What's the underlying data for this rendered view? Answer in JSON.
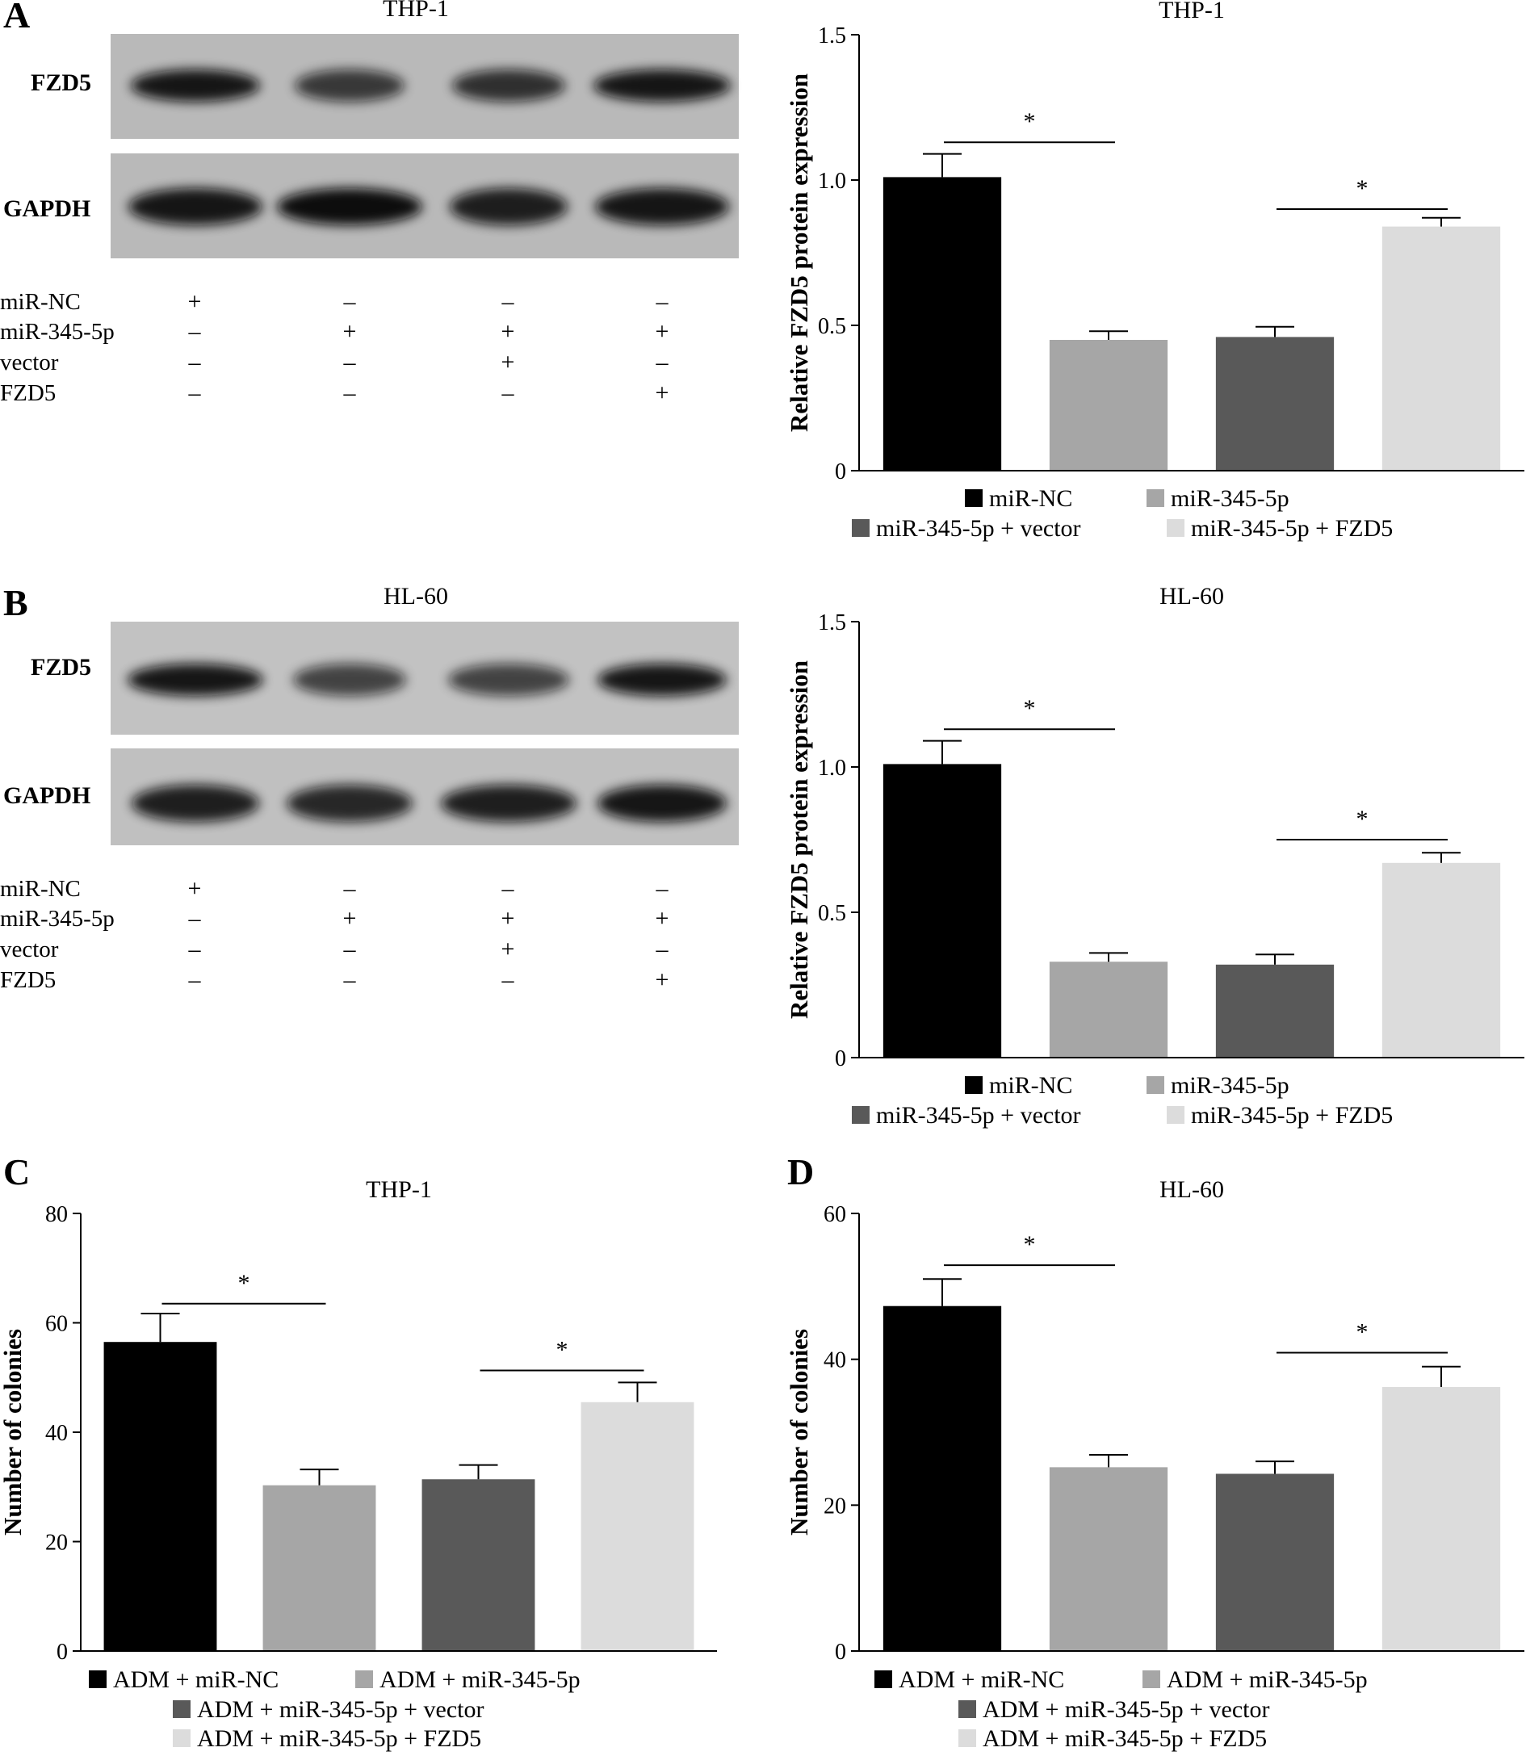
{
  "panels": [
    {
      "letter": "A",
      "blot_title": "THP-1"
    },
    {
      "letter": "B",
      "blot_title": "HL-60"
    },
    {
      "letter": "C"
    },
    {
      "letter": "D"
    }
  ],
  "blots": [
    {
      "title": "THP-1",
      "bands": [
        "FZD5",
        "GAPDH"
      ],
      "band_intensity": [
        [
          0.95,
          0.75,
          0.8,
          0.95
        ],
        [
          0.95,
          1.0,
          0.9,
          0.95
        ]
      ],
      "rows": [
        {
          "label": "miR-NC",
          "signs": [
            "+",
            "–",
            "–",
            "–"
          ]
        },
        {
          "label": "miR-345-5p",
          "signs": [
            "–",
            "+",
            "+",
            "+"
          ]
        },
        {
          "label": "vector",
          "signs": [
            "–",
            "–",
            "+",
            "–"
          ]
        },
        {
          "label": "FZD5",
          "signs": [
            "–",
            "–",
            "–",
            "+"
          ]
        }
      ]
    },
    {
      "title": "HL-60",
      "bands": [
        "FZD5",
        "GAPDH"
      ],
      "band_intensity": [
        [
          0.95,
          0.7,
          0.7,
          0.95
        ],
        [
          0.9,
          0.85,
          0.9,
          0.95
        ]
      ],
      "rows": [
        {
          "label": "miR-NC",
          "signs": [
            "+",
            "–",
            "–",
            "–"
          ]
        },
        {
          "label": "miR-345-5p",
          "signs": [
            "–",
            "+",
            "+",
            "+"
          ]
        },
        {
          "label": "vector",
          "signs": [
            "–",
            "–",
            "+",
            "–"
          ]
        },
        {
          "label": "FZD5",
          "signs": [
            "–",
            "–",
            "–",
            "+"
          ]
        }
      ]
    }
  ],
  "colors": {
    "black": "#000000",
    "light_gray": "#a6a6a6",
    "dark_gray": "#595959",
    "lightest_gray": "#dcdcdc"
  },
  "chart_data": [
    {
      "type": "bar",
      "title": "THP-1",
      "ylabel": "Relative FZD5 protein expression",
      "ylim": [
        0,
        1.5
      ],
      "yticks": [
        "0",
        "0.5",
        "1.0",
        "1.5"
      ],
      "ytick_values": [
        0,
        0.5,
        1.0,
        1.5
      ],
      "categories": [
        "miR-NC",
        "miR-345-5p",
        "miR-345-5p + vector",
        "miR-345-5p + FZD5"
      ],
      "values": [
        1.01,
        0.45,
        0.46,
        0.84
      ],
      "errors": [
        0.08,
        0.03,
        0.035,
        0.03
      ],
      "significance": [
        {
          "bars": [
            0,
            1
          ],
          "level": 1.13,
          "label": "*"
        },
        {
          "bars": [
            2,
            3
          ],
          "level": 0.9,
          "label": "*"
        }
      ],
      "legend_layout": "2x2"
    },
    {
      "type": "bar",
      "title": "HL-60",
      "ylabel": "Relative FZD5 protein expression",
      "ylim": [
        0,
        1.5
      ],
      "yticks": [
        "0",
        "0.5",
        "1.0",
        "1.5"
      ],
      "ytick_values": [
        0,
        0.5,
        1.0,
        1.5
      ],
      "categories": [
        "miR-NC",
        "miR-345-5p",
        "miR-345-5p + vector",
        "miR-345-5p + FZD5"
      ],
      "values": [
        1.01,
        0.33,
        0.32,
        0.67
      ],
      "errors": [
        0.08,
        0.03,
        0.035,
        0.035
      ],
      "significance": [
        {
          "bars": [
            0,
            1
          ],
          "level": 1.13,
          "label": "*"
        },
        {
          "bars": [
            2,
            3
          ],
          "level": 0.75,
          "label": "*"
        }
      ],
      "legend_layout": "2x2"
    },
    {
      "type": "bar",
      "title": "THP-1",
      "ylabel": "Number of colonies",
      "ylim": [
        0,
        80
      ],
      "yticks": [
        "0",
        "20",
        "40",
        "60",
        "80"
      ],
      "ytick_values": [
        0,
        20,
        40,
        60,
        80
      ],
      "categories": [
        "ADM + miR-NC",
        "ADM + miR-345-5p",
        "ADM + miR-345-5p + vector",
        "ADM + miR-345-5p + FZD5"
      ],
      "values": [
        56.5,
        30.3,
        31.4,
        45.5
      ],
      "errors": [
        5.2,
        2.9,
        2.6,
        3.6
      ],
      "significance": [
        {
          "bars": [
            0,
            1
          ],
          "level": 63.5,
          "label": "*"
        },
        {
          "bars": [
            2,
            3
          ],
          "level": 51.3,
          "label": "*"
        }
      ],
      "legend_layout": "2+1+1"
    },
    {
      "type": "bar",
      "title": "HL-60",
      "ylabel": "Number of colonies",
      "ylim": [
        0,
        60
      ],
      "yticks": [
        "0",
        "20",
        "40",
        "60"
      ],
      "ytick_values": [
        0,
        20,
        40,
        60
      ],
      "categories": [
        "ADM + miR-NC",
        "ADM + miR-345-5p",
        "ADM + miR-345-5p + vector",
        "ADM + miR-345-5p + FZD5"
      ],
      "values": [
        47.3,
        25.2,
        24.3,
        36.2
      ],
      "errors": [
        3.7,
        1.7,
        1.7,
        2.8
      ],
      "significance": [
        {
          "bars": [
            0,
            1
          ],
          "level": 52.9,
          "label": "*"
        },
        {
          "bars": [
            2,
            3
          ],
          "level": 40.9,
          "label": "*"
        }
      ],
      "legend_layout": "2+1+1"
    }
  ]
}
